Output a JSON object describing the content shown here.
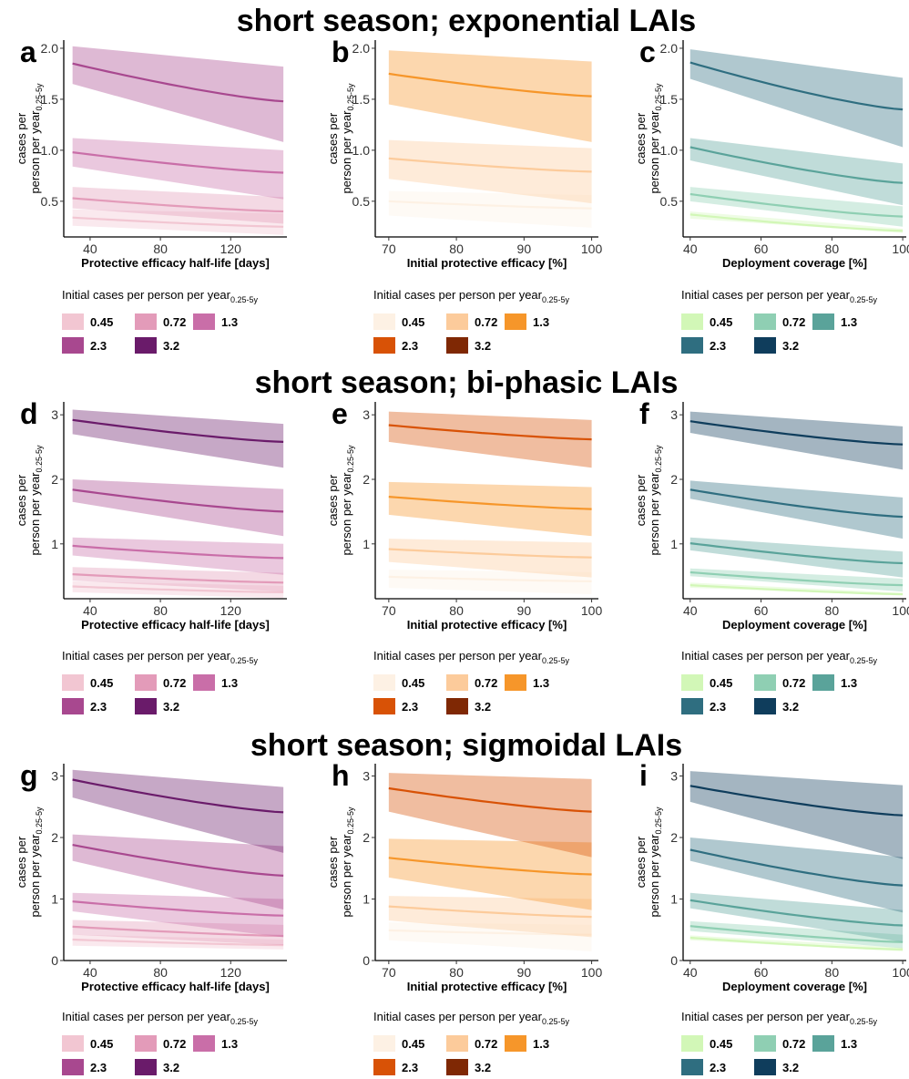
{
  "row_titles": [
    "short season; exponential LAIs",
    "short season; bi-phasic LAIs",
    "short season; sigmoidal LAIs"
  ],
  "legend": {
    "title_main": "Initial cases per person per year",
    "title_sub": "0.25-5y",
    "items": [
      "0.45",
      "0.72",
      "1.3",
      "2.3",
      "3.2"
    ]
  },
  "palettes": {
    "purple": [
      "#f2c6d2",
      "#e39bb9",
      "#c96ea8",
      "#a8488f",
      "#6a1b6a"
    ],
    "orange": [
      "#fdf1e4",
      "#fccb9b",
      "#f6962a",
      "#d85206",
      "#7f2804"
    ],
    "teal": [
      "#d2f7b7",
      "#8fcfb3",
      "#5aa39a",
      "#2f6e80",
      "#0f3d5c"
    ]
  },
  "chart_data": [
    {
      "panel": "a",
      "type": "area",
      "row": 0,
      "col": 0,
      "palette": "purple",
      "xlabel": "Protective efficacy half-life [days]",
      "ylabel_main": "cases per\nperson per year",
      "ylabel_sub": "0.25-5y",
      "xlim": [
        25,
        152
      ],
      "xticks": [
        40,
        80,
        120
      ],
      "ylim": [
        0.15,
        2.08
      ],
      "yticks": [
        0.5,
        1.0,
        1.5,
        2.0
      ],
      "ytick_labels": [
        "0.5",
        "1.0",
        "1.5",
        "2.0"
      ],
      "x": [
        30,
        150
      ],
      "series": [
        {
          "mid": [
            0.34,
            0.25
          ],
          "lo": [
            0.26,
            0.17
          ],
          "hi": [
            0.42,
            0.38
          ]
        },
        {
          "mid": [
            0.53,
            0.4
          ],
          "lo": [
            0.43,
            0.28
          ],
          "hi": [
            0.64,
            0.54
          ]
        },
        {
          "mid": [
            0.98,
            0.78
          ],
          "lo": [
            0.84,
            0.52
          ],
          "hi": [
            1.12,
            1.0
          ]
        },
        {
          "mid": [
            1.85,
            1.48
          ],
          "lo": [
            1.65,
            1.08
          ],
          "hi": [
            2.02,
            1.82
          ]
        }
      ]
    },
    {
      "panel": "b",
      "type": "area",
      "row": 0,
      "col": 1,
      "palette": "orange",
      "xlabel": "Initial protective efficacy [%]",
      "ylabel_main": "cases per\nperson per year",
      "ylabel_sub": "0.25-5y",
      "xlim": [
        68,
        101
      ],
      "xticks": [
        70,
        80,
        90,
        100
      ],
      "ylim": [
        0.15,
        2.08
      ],
      "yticks": [
        0.5,
        1.0,
        1.5,
        2.0
      ],
      "ytick_labels": [
        "0.5",
        "1.0",
        "1.5",
        "2.0"
      ],
      "x": [
        70,
        100
      ],
      "series": [
        {
          "mid": [
            0.5,
            0.43
          ],
          "lo": [
            0.36,
            0.24
          ],
          "hi": [
            0.6,
            0.56
          ]
        },
        {
          "mid": [
            0.92,
            0.79
          ],
          "lo": [
            0.72,
            0.48
          ],
          "hi": [
            1.1,
            1.02
          ]
        },
        {
          "mid": [
            1.75,
            1.53
          ],
          "lo": [
            1.45,
            1.08
          ],
          "hi": [
            1.98,
            1.87
          ]
        }
      ]
    },
    {
      "panel": "c",
      "type": "area",
      "row": 0,
      "col": 2,
      "palette": "teal",
      "xlabel": "Deployment coverage [%]",
      "ylabel_main": "cases per\nperson per year",
      "ylabel_sub": "0.25-5y",
      "xlim": [
        38,
        101
      ],
      "xticks": [
        40,
        60,
        80,
        100
      ],
      "ylim": [
        0.15,
        2.08
      ],
      "yticks": [
        0.5,
        1.0,
        1.5,
        2.0
      ],
      "ytick_labels": [
        "0.5",
        "1.0",
        "1.5",
        "2.0"
      ],
      "x": [
        40,
        100
      ],
      "series": [
        {
          "mid": [
            0.37,
            0.21
          ],
          "lo": [
            0.33,
            0.19
          ],
          "hi": [
            0.4,
            0.23
          ]
        },
        {
          "mid": [
            0.57,
            0.35
          ],
          "lo": [
            0.5,
            0.25
          ],
          "hi": [
            0.64,
            0.45
          ]
        },
        {
          "mid": [
            1.03,
            0.68
          ],
          "lo": [
            0.9,
            0.46
          ],
          "hi": [
            1.12,
            0.87
          ]
        },
        {
          "mid": [
            1.86,
            1.4
          ],
          "lo": [
            1.7,
            1.03
          ],
          "hi": [
            1.99,
            1.71
          ]
        }
      ]
    },
    {
      "panel": "d",
      "type": "area",
      "row": 1,
      "col": 0,
      "palette": "purple",
      "xlabel": "Protective efficacy half-life [days]",
      "ylabel_main": "cases per\nperson per year",
      "ylabel_sub": "0.25-5y",
      "xlim": [
        25,
        152
      ],
      "xticks": [
        40,
        80,
        120
      ],
      "ylim": [
        0.15,
        3.2
      ],
      "yticks": [
        1,
        2,
        3
      ],
      "ytick_labels": [
        "1",
        "2",
        "3"
      ],
      "x": [
        30,
        150
      ],
      "series": [
        {
          "mid": [
            0.34,
            0.25
          ],
          "lo": [
            0.25,
            0.16
          ],
          "hi": [
            0.42,
            0.35
          ]
        },
        {
          "mid": [
            0.53,
            0.4
          ],
          "lo": [
            0.43,
            0.26
          ],
          "hi": [
            0.64,
            0.55
          ]
        },
        {
          "mid": [
            0.97,
            0.78
          ],
          "lo": [
            0.82,
            0.52
          ],
          "hi": [
            1.1,
            1.0
          ]
        },
        {
          "mid": [
            1.84,
            1.5
          ],
          "lo": [
            1.65,
            1.12
          ],
          "hi": [
            2.0,
            1.85
          ]
        },
        {
          "mid": [
            2.92,
            2.58
          ],
          "lo": [
            2.7,
            2.18
          ],
          "hi": [
            3.08,
            2.86
          ]
        }
      ]
    },
    {
      "panel": "e",
      "type": "area",
      "row": 1,
      "col": 1,
      "palette": "orange",
      "xlabel": "Initial protective efficacy [%]",
      "ylabel_main": "cases per\nperson per year",
      "ylabel_sub": "0.25-5y",
      "xlim": [
        68,
        101
      ],
      "xticks": [
        70,
        80,
        90,
        100
      ],
      "ylim": [
        0.15,
        3.2
      ],
      "yticks": [
        1,
        2,
        3
      ],
      "ytick_labels": [
        "1",
        "2",
        "3"
      ],
      "x": [
        70,
        100
      ],
      "series": [
        {
          "mid": [
            0.49,
            0.42
          ],
          "lo": [
            0.32,
            0.22
          ],
          "hi": [
            0.6,
            0.56
          ]
        },
        {
          "mid": [
            0.92,
            0.79
          ],
          "lo": [
            0.72,
            0.48
          ],
          "hi": [
            1.08,
            1.02
          ]
        },
        {
          "mid": [
            1.73,
            1.54
          ],
          "lo": [
            1.45,
            1.12
          ],
          "hi": [
            1.96,
            1.88
          ]
        },
        {
          "mid": [
            2.84,
            2.62
          ],
          "lo": [
            2.58,
            2.18
          ],
          "hi": [
            3.05,
            2.92
          ]
        }
      ]
    },
    {
      "panel": "f",
      "type": "area",
      "row": 1,
      "col": 2,
      "palette": "teal",
      "xlabel": "Deployment coverage [%]",
      "ylabel_main": "cases per\nperson per year",
      "ylabel_sub": "0.25-5y",
      "xlim": [
        38,
        101
      ],
      "xticks": [
        40,
        60,
        80,
        100
      ],
      "ylim": [
        0.15,
        3.2
      ],
      "yticks": [
        1,
        2,
        3
      ],
      "ytick_labels": [
        "1",
        "2",
        "3"
      ],
      "x": [
        40,
        100
      ],
      "series": [
        {
          "mid": [
            0.36,
            0.22
          ],
          "lo": [
            0.32,
            0.2
          ],
          "hi": [
            0.4,
            0.24
          ]
        },
        {
          "mid": [
            0.56,
            0.36
          ],
          "lo": [
            0.5,
            0.26
          ],
          "hi": [
            0.62,
            0.46
          ]
        },
        {
          "mid": [
            1.01,
            0.7
          ],
          "lo": [
            0.9,
            0.48
          ],
          "hi": [
            1.1,
            0.88
          ]
        },
        {
          "mid": [
            1.84,
            1.42
          ],
          "lo": [
            1.7,
            1.08
          ],
          "hi": [
            1.98,
            1.72
          ]
        },
        {
          "mid": [
            2.9,
            2.54
          ],
          "lo": [
            2.72,
            2.15
          ],
          "hi": [
            3.05,
            2.82
          ]
        }
      ]
    },
    {
      "panel": "g",
      "type": "area",
      "row": 2,
      "col": 0,
      "palette": "purple",
      "xlabel": "Protective efficacy half-life [days]",
      "ylabel_main": "cases per\nperson per year",
      "ylabel_sub": "0.25-5y",
      "xlim": [
        25,
        152
      ],
      "xticks": [
        40,
        80,
        120
      ],
      "ylim": [
        0,
        3.2
      ],
      "yticks": [
        0,
        1,
        2,
        3
      ],
      "ytick_labels": [
        "0",
        "1",
        "2",
        "3"
      ],
      "x": [
        30,
        150
      ],
      "series": [
        {
          "mid": [
            0.34,
            0.25
          ],
          "lo": [
            0.24,
            0.18
          ],
          "hi": [
            0.42,
            0.34
          ]
        },
        {
          "mid": [
            0.55,
            0.4
          ],
          "lo": [
            0.42,
            0.25
          ],
          "hi": [
            0.66,
            0.58
          ]
        },
        {
          "mid": [
            0.96,
            0.73
          ],
          "lo": [
            0.8,
            0.38
          ],
          "hi": [
            1.1,
            1.0
          ]
        },
        {
          "mid": [
            1.88,
            1.38
          ],
          "lo": [
            1.62,
            0.83
          ],
          "hi": [
            2.05,
            1.86
          ]
        },
        {
          "mid": [
            2.94,
            2.41
          ],
          "lo": [
            2.65,
            1.75
          ],
          "hi": [
            3.1,
            2.82
          ]
        }
      ]
    },
    {
      "panel": "h",
      "type": "area",
      "row": 2,
      "col": 1,
      "palette": "orange",
      "xlabel": "Initial protective efficacy [%]",
      "ylabel_main": "cases per\nperson per year",
      "ylabel_sub": "0.25-5y",
      "xlim": [
        68,
        101
      ],
      "xticks": [
        70,
        80,
        90,
        100
      ],
      "ylim": [
        0,
        3.2
      ],
      "yticks": [
        0,
        1,
        2,
        3
      ],
      "ytick_labels": [
        "0",
        "1",
        "2",
        "3"
      ],
      "x": [
        70,
        100
      ],
      "series": [
        {
          "mid": [
            0.49,
            0.42
          ],
          "lo": [
            0.33,
            0.15
          ],
          "hi": [
            0.62,
            0.58
          ]
        },
        {
          "mid": [
            0.88,
            0.71
          ],
          "lo": [
            0.65,
            0.38
          ],
          "hi": [
            1.05,
            1.0
          ]
        },
        {
          "mid": [
            1.67,
            1.4
          ],
          "lo": [
            1.35,
            0.82
          ],
          "hi": [
            1.98,
            1.92
          ]
        },
        {
          "mid": [
            2.8,
            2.42
          ],
          "lo": [
            2.42,
            1.68
          ],
          "hi": [
            3.05,
            2.95
          ]
        }
      ]
    },
    {
      "panel": "i",
      "type": "area",
      "row": 2,
      "col": 2,
      "palette": "teal",
      "xlabel": "Deployment coverage [%]",
      "ylabel_main": "cases per\nperson per year",
      "ylabel_sub": "0.25-5y",
      "xlim": [
        38,
        101
      ],
      "xticks": [
        40,
        60,
        80,
        100
      ],
      "ylim": [
        0,
        3.2
      ],
      "yticks": [
        0,
        1,
        2,
        3
      ],
      "ytick_labels": [
        "0",
        "1",
        "2",
        "3"
      ],
      "x": [
        40,
        100
      ],
      "series": [
        {
          "mid": [
            0.37,
            0.18
          ],
          "lo": [
            0.33,
            0.15
          ],
          "hi": [
            0.41,
            0.21
          ]
        },
        {
          "mid": [
            0.56,
            0.3
          ],
          "lo": [
            0.48,
            0.2
          ],
          "hi": [
            0.64,
            0.42
          ]
        },
        {
          "mid": [
            0.98,
            0.57
          ],
          "lo": [
            0.85,
            0.3
          ],
          "hi": [
            1.1,
            0.82
          ]
        },
        {
          "mid": [
            1.8,
            1.22
          ],
          "lo": [
            1.62,
            0.78
          ],
          "hi": [
            2.0,
            1.68
          ]
        },
        {
          "mid": [
            2.84,
            2.36
          ],
          "lo": [
            2.58,
            1.65
          ],
          "hi": [
            3.08,
            2.85
          ]
        }
      ]
    }
  ]
}
